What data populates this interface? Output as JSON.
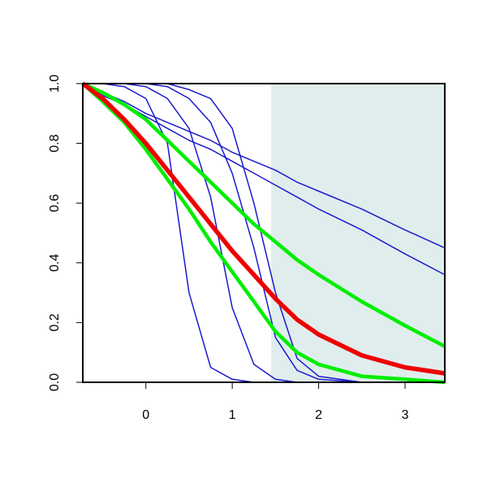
{
  "chart_data": {
    "type": "line",
    "x": [
      -0.73,
      -0.5,
      -0.25,
      0,
      0.25,
      0.5,
      0.75,
      1,
      1.25,
      1.5,
      1.75,
      2,
      2.5,
      3,
      3.46
    ],
    "series": [
      {
        "color": "#1a1acd",
        "line_width": 1.5,
        "values": [
          1,
          1,
          0.99,
          0.95,
          0.8,
          0.3,
          0.05,
          0.01,
          0,
          0,
          0,
          0,
          0,
          0,
          0
        ]
      },
      {
        "color": "#1a1acd",
        "line_width": 1.5,
        "values": [
          1,
          1,
          1,
          0.99,
          0.95,
          0.85,
          0.62,
          0.25,
          0.06,
          0.01,
          0,
          0,
          0,
          0,
          0
        ]
      },
      {
        "color": "#1a1acd",
        "line_width": 1.5,
        "values": [
          1,
          1,
          1,
          1,
          0.99,
          0.95,
          0.87,
          0.7,
          0.45,
          0.15,
          0.04,
          0.01,
          0,
          0,
          0
        ]
      },
      {
        "color": "#1a1acd",
        "line_width": 1.5,
        "values": [
          1,
          1,
          1,
          1,
          1,
          0.98,
          0.95,
          0.85,
          0.6,
          0.3,
          0.08,
          0.02,
          0,
          0,
          0
        ]
      },
      {
        "color": "#1a1acd",
        "line_width": 1.5,
        "values": [
          1,
          0.97,
          0.94,
          0.9,
          0.87,
          0.84,
          0.81,
          0.77,
          0.74,
          0.71,
          0.67,
          0.64,
          0.58,
          0.51,
          0.45
        ]
      },
      {
        "color": "#1a1acd",
        "line_width": 1.5,
        "values": [
          1,
          0.96,
          0.93,
          0.89,
          0.85,
          0.81,
          0.78,
          0.74,
          0.7,
          0.66,
          0.62,
          0.58,
          0.51,
          0.43,
          0.36
        ]
      },
      {
        "color": "#00ee00",
        "line_width": 4.5,
        "values": [
          1,
          0.97,
          0.93,
          0.88,
          0.81,
          0.74,
          0.67,
          0.6,
          0.53,
          0.47,
          0.41,
          0.36,
          0.27,
          0.19,
          0.12
        ]
      },
      {
        "color": "#00ee00",
        "line_width": 4.5,
        "values": [
          1,
          0.94,
          0.87,
          0.78,
          0.68,
          0.58,
          0.47,
          0.37,
          0.27,
          0.17,
          0.1,
          0.06,
          0.02,
          0.01,
          0
        ]
      },
      {
        "color": "#ee0000",
        "line_width": 5.5,
        "values": [
          1,
          0.95,
          0.88,
          0.8,
          0.71,
          0.62,
          0.53,
          0.44,
          0.36,
          0.28,
          0.21,
          0.16,
          0.09,
          0.05,
          0.03
        ]
      }
    ],
    "shade_from": 1.45,
    "shade_color": "#e0eded",
    "xlim": [
      -0.73,
      3.46
    ],
    "ylim": [
      0,
      1
    ],
    "xticks": [
      0,
      1,
      2,
      3
    ],
    "yticks": [
      {
        "value": 0,
        "label": "0.0"
      },
      0.2,
      0.4,
      0.6,
      0.8,
      {
        "value": 1,
        "label": "1.0"
      }
    ]
  }
}
